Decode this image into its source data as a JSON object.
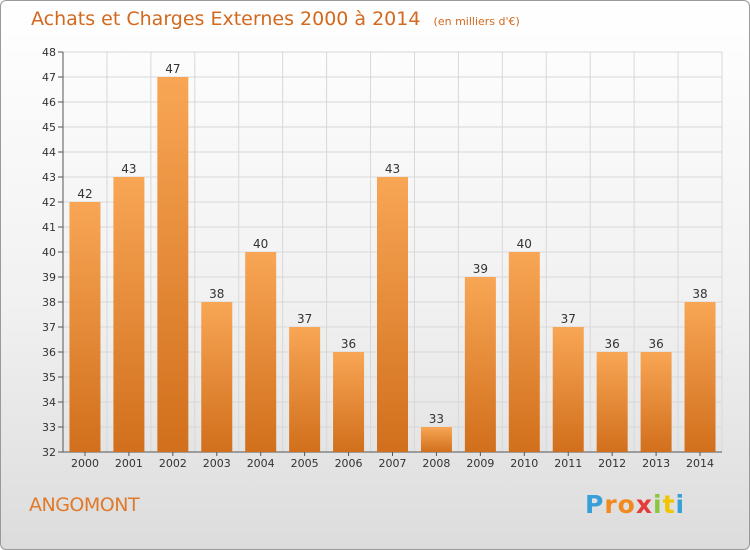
{
  "chart_data": {
    "type": "bar",
    "title": "Achats et Charges Externes 2000 à 2014",
    "subtitle": "(en milliers d'€)",
    "xlabel": "",
    "ylabel": "",
    "categories": [
      "2000",
      "2001",
      "2002",
      "2003",
      "2004",
      "2005",
      "2006",
      "2007",
      "2008",
      "2009",
      "2010",
      "2011",
      "2012",
      "2013",
      "2014"
    ],
    "values": [
      42,
      43,
      47,
      38,
      40,
      37,
      36,
      43,
      33,
      39,
      40,
      37,
      36,
      36,
      38
    ],
    "ylim": [
      32,
      48
    ],
    "yticks": [
      32,
      33,
      34,
      35,
      36,
      37,
      38,
      39,
      40,
      41,
      42,
      43,
      44,
      45,
      46,
      47,
      48
    ],
    "grid": true,
    "legend": "none",
    "bar_color_top": "#f8a655",
    "bar_color_bottom": "#d16f1c",
    "grid_color": "#d8d8d8"
  },
  "footer": {
    "place": "ANGOMONT",
    "brand_letters": [
      "P",
      "r",
      "o",
      "x",
      "i",
      "t",
      "i"
    ],
    "brand_colors": [
      "#37a0d8",
      "#f08a1e",
      "#f08a1e",
      "#e43b3b",
      "#8cc63f",
      "#f3c400",
      "#37a0d8"
    ]
  }
}
